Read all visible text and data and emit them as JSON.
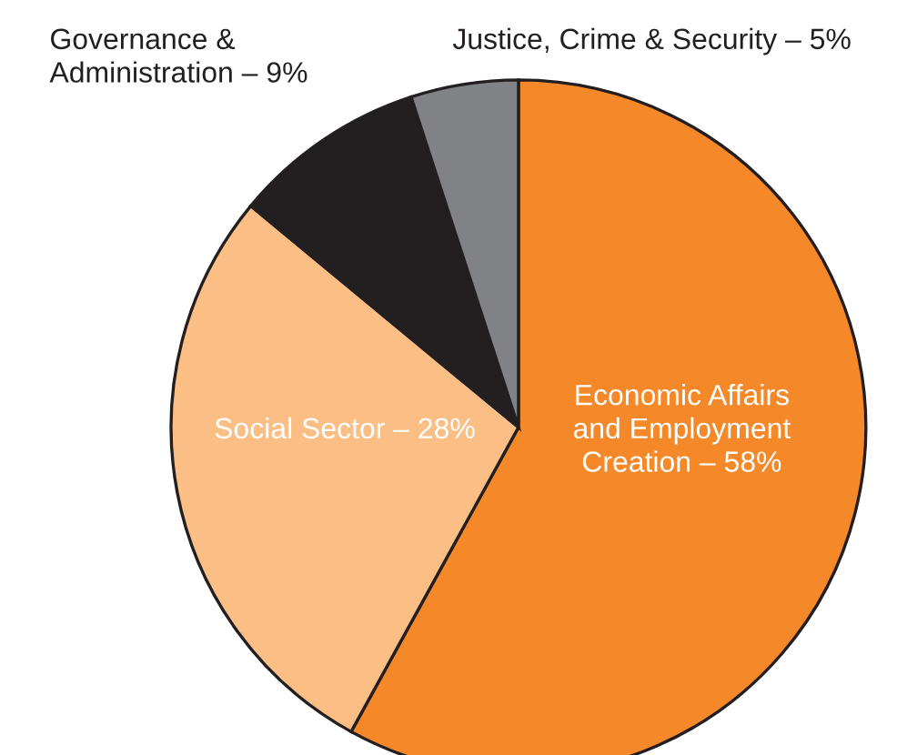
{
  "chart_data": {
    "type": "pie",
    "categories": [
      "Economic Affairs\nand Employment\nCreation – 58%",
      "Social Sector – 28%",
      "Governance &\nAdministration – 9%",
      "Justice, Crime & Security – 5%"
    ],
    "values": [
      58,
      28,
      9,
      5
    ],
    "colors": [
      "#f5892a",
      "#fbbf86",
      "#231f20",
      "#808285"
    ]
  }
}
